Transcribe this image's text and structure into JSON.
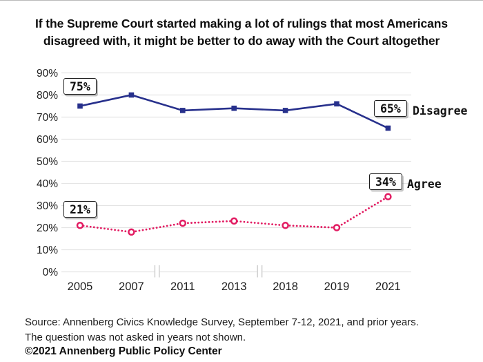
{
  "title": {
    "line1": "If the Supreme Court started making a lot of rulings that most Americans",
    "line2": "disagreed with, it might be better to do away with the Court altogether"
  },
  "chart_data": {
    "type": "line",
    "title": "If the Supreme Court started making a lot of rulings that most Americans disagreed with, it might be better to do away with the Court altogether",
    "categories": [
      "2005",
      "2007",
      "2011",
      "2013",
      "2018",
      "2019",
      "2021"
    ],
    "series": [
      {
        "name": "Disagree",
        "values": [
          75,
          80,
          73,
          74,
          73,
          76,
          65
        ],
        "color": "#27308c",
        "line_style": "solid",
        "marker": "square"
      },
      {
        "name": "Agree",
        "values": [
          21,
          18,
          22,
          23,
          21,
          20,
          34
        ],
        "color": "#e21c62",
        "line_style": "dotted",
        "marker": "open-circle"
      }
    ],
    "ylim": [
      0,
      90
    ],
    "ytick_step": 10,
    "ytick_labels": [
      "0%",
      "10%",
      "20%",
      "30%",
      "40%",
      "50%",
      "60%",
      "70%",
      "80%",
      "90%"
    ],
    "grid": true,
    "axis_breaks_after": [
      "2007",
      "2013"
    ],
    "annotations": [
      {
        "text": "75%",
        "series": "Disagree",
        "year": "2005"
      },
      {
        "text": "65%",
        "series": "Disagree",
        "year": "2021"
      },
      {
        "text": "21%",
        "series": "Agree",
        "year": "2005"
      },
      {
        "text": "34%",
        "series": "Agree",
        "year": "2021"
      }
    ],
    "legend_position": "right-end-labels"
  },
  "source": {
    "line1": "Source: Annenberg Civics Knowledge Survey, September 7-12, 2021, and prior years.",
    "line2": "The question was not asked in years not shown."
  },
  "footer": "©2021 Annenberg Public Policy Center",
  "colors": {
    "disagree": "#27308c",
    "agree": "#e21c62",
    "grid": "#e4e4e4",
    "axis_break": "#cfcfcf",
    "text": "#1a1a1a",
    "background": "#ffffff"
  }
}
